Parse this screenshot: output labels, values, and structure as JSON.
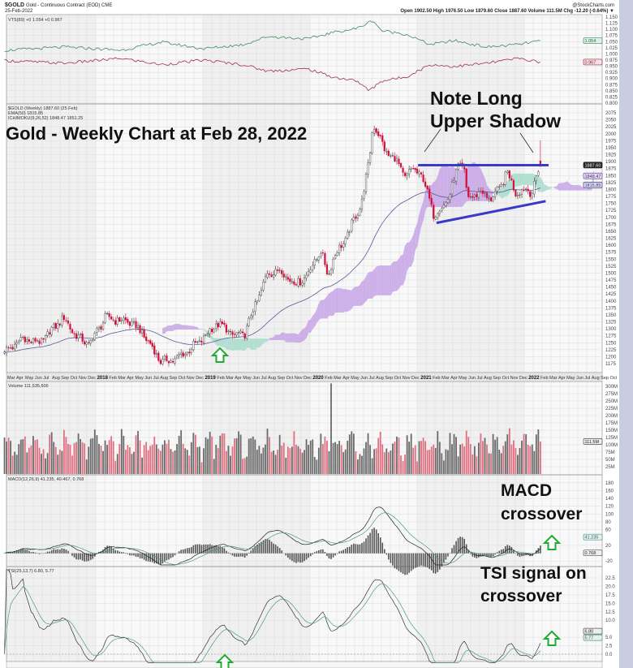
{
  "header": {
    "symbol": "$GOLD",
    "name": "Gold - Continuous Contract (EOD) CME",
    "date": "25-Feb-2022",
    "quote": "Open 1902.50  High 1976.50  Low 1879.60  Close 1887.60  Volume 111.5M  Chg -12.20 (-0.64%) ▼",
    "watermark": "@StockCharts.com"
  },
  "annotations": {
    "title": "Gold - Weekly Chart at Feb 28, 2022",
    "note_line1": "Note Long",
    "note_line2": "Upper Shadow",
    "macd_line1": "MACD",
    "macd_line2": "crossover",
    "tsi_line1": "TSI signal on",
    "tsi_line2": "crossover"
  },
  "colors": {
    "up_candle": "#333333",
    "down_candle": "#d0103a",
    "cloud_bearish": "#c6a4e6",
    "cloud_bullish": "#a6dccc",
    "ema": "#5a5a9a",
    "trendline": "#3a3ac8",
    "arrow": "#22aa33",
    "ratio_line_1": "#3b8f5a",
    "ratio_line_2": "#a0304a",
    "volume_up": "#6a6a6a",
    "volume_down": "#e07080"
  },
  "x_ticks": {
    "start": "2017-03",
    "labels": [
      "Mar",
      "Apr",
      "May",
      "Jun",
      "Jul",
      "Aug",
      "Sep",
      "Oct",
      "Nov",
      "Dec",
      "2018",
      "Feb",
      "Mar",
      "Apr",
      "May",
      "Jun",
      "Jul",
      "Aug",
      "Sep",
      "Oct",
      "Nov",
      "Dec",
      "2019",
      "Feb",
      "Mar",
      "Apr",
      "May",
      "Jun",
      "Jul",
      "Aug",
      "Sep",
      "Oct",
      "Nov",
      "Dec",
      "2020",
      "Feb",
      "Mar",
      "Apr",
      "May",
      "Jun",
      "Jul",
      "Aug",
      "Sep",
      "Oct",
      "Nov",
      "Dec",
      "2021",
      "Feb",
      "Mar",
      "Apr",
      "May",
      "Jun",
      "Jul",
      "Aug",
      "Sep",
      "Oct",
      "Nov",
      "Dec",
      "2022",
      "Feb",
      "Mar",
      "Apr",
      "May",
      "Jun",
      "Jul",
      "Aug",
      "Sep",
      "Oct"
    ]
  },
  "chart_data": [
    {
      "type": "line",
      "panel": "ratio",
      "legend": "VTS(89) +0 1.054 +0 0.967",
      "ylim": [
        0.8,
        1.15
      ],
      "y_ticks": [
        "1.150",
        "1.125",
        "1.100",
        "1.075",
        "1.050",
        "1.025",
        "1.000",
        "0.975",
        "0.950",
        "0.925",
        "0.900",
        "0.875",
        "0.850",
        "0.825",
        "0.800"
      ],
      "value_tags": [
        "1.054",
        "0.967"
      ],
      "series": [
        {
          "values": [
            [
              "2017-03-07",
              1.015
            ],
            [
              "2017-09-16",
              1.028
            ],
            [
              "2018-03-29",
              1.015
            ],
            [
              "2018-08-14",
              1.048
            ],
            [
              "2019-01-01",
              1.021
            ],
            [
              "2019-05-19",
              1.038
            ],
            [
              "2019-08-10",
              1.071
            ],
            [
              "2019-12-26",
              1.061
            ],
            [
              "2020-03-18",
              1.087
            ],
            [
              "2020-06-10",
              1.104
            ],
            [
              "2020-08-03",
              1.137
            ],
            [
              "2020-09-01",
              1.094
            ],
            [
              "2020-11-22",
              1.081
            ],
            [
              "2021-02-14",
              1.038
            ],
            [
              "2021-05-08",
              1.054
            ],
            [
              "2021-08-25",
              1.028
            ],
            [
              "2021-12-12",
              1.038
            ],
            [
              "2022-02-25",
              1.054
            ]
          ]
        },
        {
          "values": [
            [
              "2017-03-07",
              0.972
            ],
            [
              "2017-09-16",
              0.962
            ],
            [
              "2018-03-29",
              0.982
            ],
            [
              "2018-08-14",
              0.956
            ],
            [
              "2019-01-01",
              0.975
            ],
            [
              "2019-05-19",
              0.956
            ],
            [
              "2019-08-10",
              0.93
            ],
            [
              "2019-12-26",
              0.939
            ],
            [
              "2020-03-18",
              0.906
            ],
            [
              "2020-06-10",
              0.89
            ],
            [
              "2020-07-20",
              0.85
            ],
            [
              "2020-09-01",
              0.89
            ],
            [
              "2020-11-22",
              0.906
            ],
            [
              "2021-02-14",
              0.956
            ],
            [
              "2021-05-08",
              0.949
            ],
            [
              "2021-08-25",
              0.962
            ],
            [
              "2021-12-12",
              0.982
            ],
            [
              "2022-02-25",
              0.967
            ]
          ]
        }
      ]
    },
    {
      "type": "line",
      "panel": "price",
      "legend": [
        "$GOLD (Weekly) 1887.60 (25 Feb)",
        "EMA(50) 1815.85",
        "ICHIMOKU(9,26,52) 1848.47 1851.25"
      ],
      "ylim": [
        1162.5,
        2087.5
      ],
      "y_ticks": [
        "2075",
        "2050",
        "2025",
        "2000",
        "1975",
        "1950",
        "1925",
        "1900",
        "1875",
        "1850",
        "1825",
        "1800",
        "1775",
        "1750",
        "1725",
        "1700",
        "1675",
        "1650",
        "1625",
        "1600",
        "1575",
        "1550",
        "1525",
        "1500",
        "1475",
        "1450",
        "1425",
        "1400",
        "1375",
        "1350",
        "1325",
        "1300",
        "1275",
        "1250",
        "1225",
        "1200",
        "1175"
      ],
      "value_tags": [
        "1887.60",
        "1848.47",
        "1815.85"
      ],
      "weekly_close_path": [
        [
          "2017-02-24",
          1225
        ],
        [
          "2017-03-07",
          1220
        ],
        [
          "2017-04-23",
          1265
        ],
        [
          "2017-06-25",
          1250
        ],
        [
          "2017-09-12",
          1340
        ],
        [
          "2017-10-30",
          1270
        ],
        [
          "2017-12-10",
          1245
        ],
        [
          "2018-02-02",
          1340
        ],
        [
          "2018-04-26",
          1325
        ],
        [
          "2018-06-06",
          1290
        ],
        [
          "2018-08-14",
          1180
        ],
        [
          "2018-10-08",
          1195
        ],
        [
          "2018-12-17",
          1250
        ],
        [
          "2019-02-20",
          1320
        ],
        [
          "2019-04-20",
          1275
        ],
        [
          "2019-05-22",
          1280
        ],
        [
          "2019-06-14",
          1345
        ],
        [
          "2019-08-10",
          1500
        ],
        [
          "2019-09-20",
          1510
        ],
        [
          "2019-11-13",
          1460
        ],
        [
          "2019-12-20",
          1490
        ],
        [
          "2020-02-06",
          1580
        ],
        [
          "2020-03-03",
          1490
        ],
        [
          "2020-03-18",
          1550
        ],
        [
          "2020-04-30",
          1620
        ],
        [
          "2020-06-24",
          1750
        ],
        [
          "2020-07-20",
          1895
        ],
        [
          "2020-08-03",
          2040
        ],
        [
          "2020-09-13",
          1940
        ],
        [
          "2020-10-27",
          1895
        ],
        [
          "2020-11-22",
          1840
        ],
        [
          "2020-12-20",
          1880
        ],
        [
          "2021-01-19",
          1840
        ],
        [
          "2021-02-14",
          1765
        ],
        [
          "2021-02-28",
          1700
        ],
        [
          "2021-04-23",
          1780
        ],
        [
          "2021-05-22",
          1895
        ],
        [
          "2021-06-10",
          1870
        ],
        [
          "2021-06-21",
          1770
        ],
        [
          "2021-08-10",
          1790
        ],
        [
          "2021-09-08",
          1765
        ],
        [
          "2021-10-08",
          1800
        ],
        [
          "2021-11-03",
          1865
        ],
        [
          "2021-12-02",
          1790
        ],
        [
          "2022-01-11",
          1800
        ],
        [
          "2022-01-26",
          1790
        ],
        [
          "2022-02-25",
          1887.6
        ]
      ],
      "last_bar": {
        "date": "2022-02-25",
        "open": 1902.5,
        "high": 1976.5,
        "low": 1879.6,
        "close": 1887.6
      },
      "resistance_line": [
        [
          "2021-01-04",
          1887
        ],
        [
          "2022-03-25",
          1887
        ]
      ],
      "support_line": [
        [
          "2021-03-08",
          1680
        ],
        [
          "2022-03-15",
          1758
        ]
      ]
    },
    {
      "type": "bar",
      "panel": "volume",
      "legend": "Volume 111,535,606",
      "ylim": [
        0,
        300
      ],
      "unit": "M",
      "y_ticks": [
        "300M",
        "275M",
        "250M",
        "225M",
        "200M",
        "175M",
        "150M",
        "125M",
        "100M",
        "75M",
        "50M",
        "25M"
      ],
      "value_tags": [
        "111.5M"
      ],
      "typical_range": [
        40,
        160
      ],
      "peak": [
        "2020-03-13",
        310
      ]
    },
    {
      "type": "line",
      "panel": "macd",
      "legend": "MACD(12,26,9) 41.235, 40.467, 0.768",
      "ylim": [
        -30,
        190
      ],
      "y_ticks": [
        "180",
        "160",
        "140",
        "120",
        "100",
        "80",
        "60",
        "20",
        "-20"
      ],
      "y_tick_values": [
        180,
        160,
        140,
        120,
        100,
        80,
        60,
        20,
        -20
      ],
      "value_tags": [
        "41.235",
        "0.768"
      ]
    },
    {
      "type": "line",
      "panel": "tsi",
      "legend": "TSI(25,13,7) 6.80, 5.77",
      "ylim": [
        -2.5,
        25
      ],
      "y_ticks": [
        "22.5",
        "20.0",
        "17.5",
        "15.0",
        "12.5",
        "10.0",
        "5.0",
        "2.5",
        "0.0"
      ],
      "y_tick_values": [
        22.5,
        20,
        17.5,
        15,
        12.5,
        10,
        5,
        2.5,
        0
      ],
      "value_tags": [
        "6.80",
        "5.77"
      ]
    }
  ]
}
